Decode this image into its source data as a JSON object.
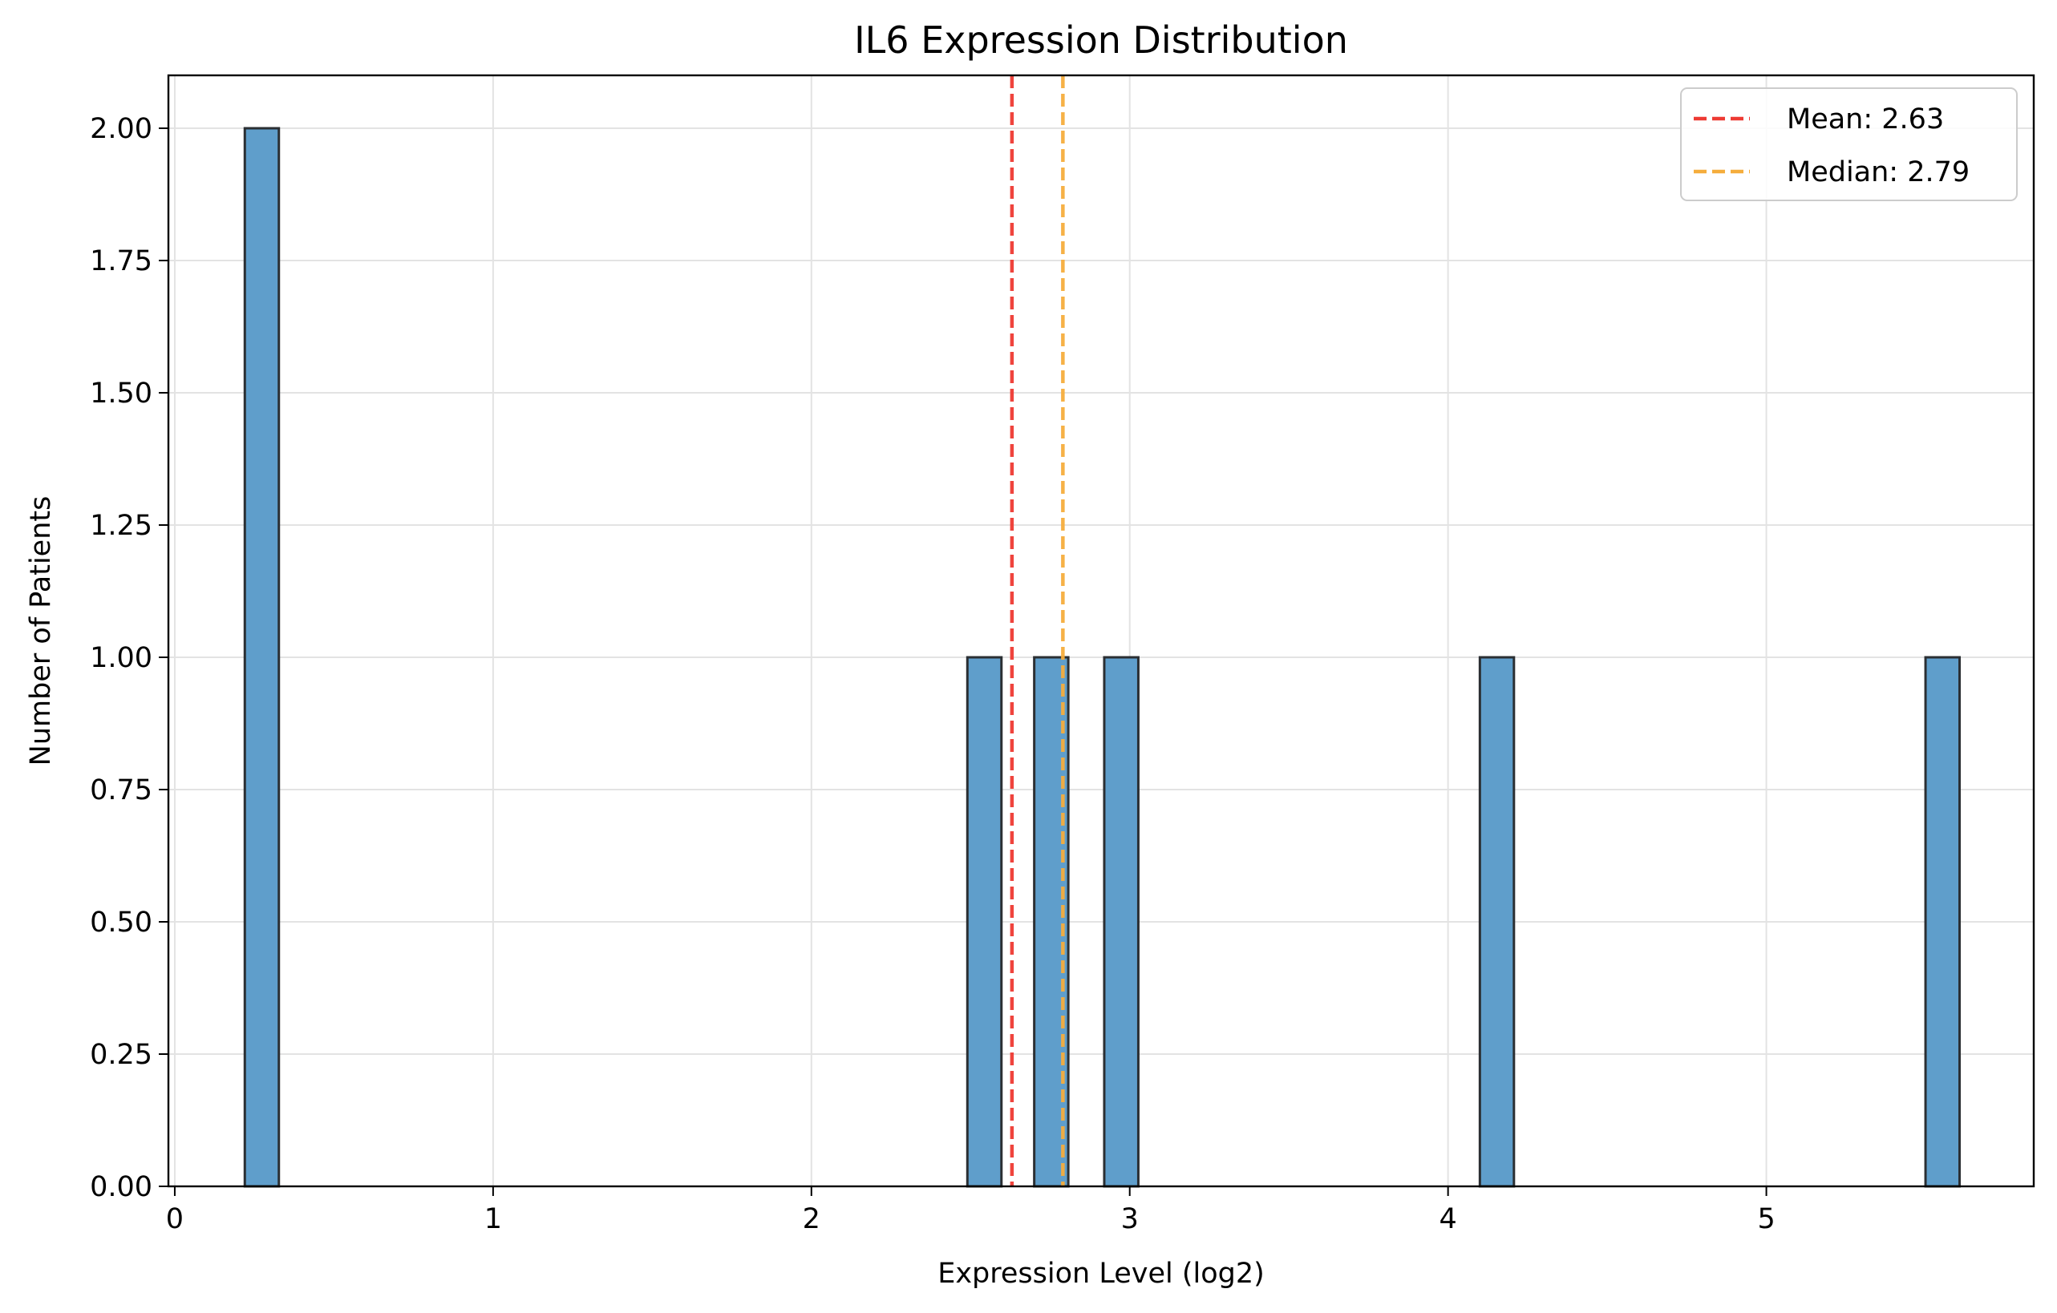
{
  "chart_data": {
    "type": "bar",
    "title": "IL6 Expression Distribution",
    "xlabel": "Expression Level (log2)",
    "ylabel": "Number of Patients",
    "xlim": [
      -0.02,
      5.84
    ],
    "ylim": [
      0,
      2.1
    ],
    "x_ticks": [
      0,
      1,
      2,
      3,
      4,
      5
    ],
    "x_tick_labels": [
      "0",
      "1",
      "2",
      "3",
      "4",
      "5"
    ],
    "y_ticks": [
      0,
      0.25,
      0.5,
      0.75,
      1.0,
      1.25,
      1.5,
      1.75,
      2.0
    ],
    "y_tick_labels": [
      "0.00",
      "0.25",
      "0.50",
      "0.75",
      "1.00",
      "1.25",
      "1.50",
      "1.75",
      "2.00"
    ],
    "bin_width": 0.107,
    "bins": [
      {
        "x_start": 0.22,
        "count": 2
      },
      {
        "x_start": 2.49,
        "count": 1
      },
      {
        "x_start": 2.7,
        "count": 1
      },
      {
        "x_start": 2.92,
        "count": 1
      },
      {
        "x_start": 4.1,
        "count": 1
      },
      {
        "x_start": 5.5,
        "count": 1
      }
    ],
    "bar_color": "#5f9ecb",
    "bar_edge_color": "#2b2f33",
    "grid": true,
    "reference_lines": [
      {
        "label": "Mean: 2.63",
        "x": 2.63,
        "color": "#ee3a33"
      },
      {
        "label": "Median: 2.79",
        "x": 2.79,
        "color": "#f5ad3c"
      }
    ],
    "legend_position": "top-right"
  }
}
